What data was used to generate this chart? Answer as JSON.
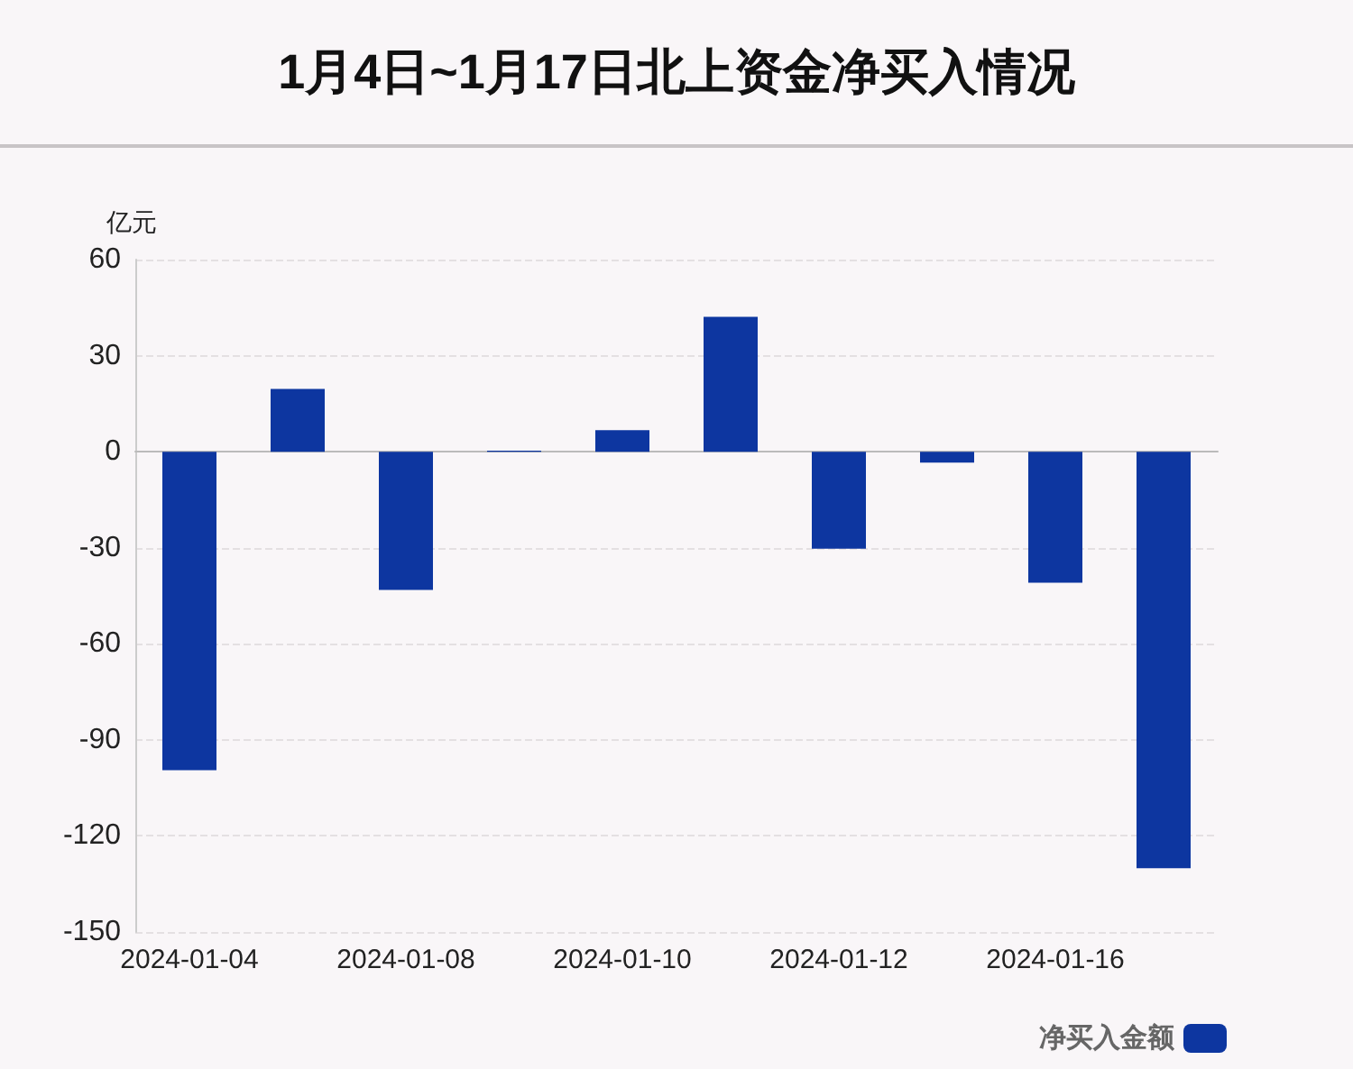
{
  "chart_data": {
    "type": "bar",
    "title": "1月4日~1月17日北上资金净买入情况",
    "ylabel": "亿元",
    "categories": [
      "2024-01-04",
      null,
      "2024-01-08",
      null,
      "2024-01-10",
      null,
      "2024-01-12",
      null,
      "2024-01-16",
      null
    ],
    "series": [
      {
        "name": "净买入金额",
        "color": "#0d36a0",
        "values": [
          -99.5,
          19.6,
          -43.2,
          0.3,
          6.7,
          42.1,
          -30.3,
          -3.4,
          -40.9,
          -130.1
        ]
      }
    ],
    "ylim": [
      -150,
      60
    ],
    "yticks": [
      -150,
      -120,
      -90,
      -60,
      -30,
      0,
      30,
      60
    ],
    "grid": "y",
    "legend": "bottom right"
  }
}
